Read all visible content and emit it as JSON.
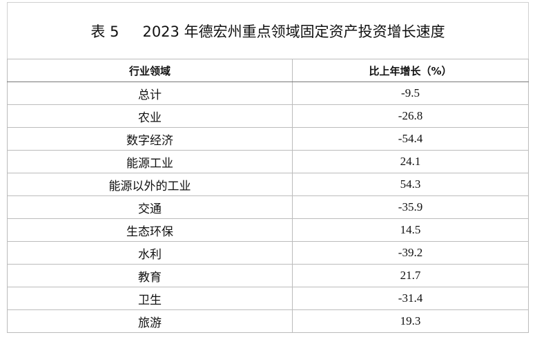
{
  "header": {
    "table_number": "表 5",
    "title": "2023 年德宏州重点领域固定资产投资增长速度"
  },
  "table": {
    "columns": [
      "行业领域",
      "比上年增长（%）"
    ],
    "rows": [
      [
        "总计",
        -9.5
      ],
      [
        "农业",
        -26.8
      ],
      [
        "数字经济",
        -54.4
      ],
      [
        "能源工业",
        24.1
      ],
      [
        "能源以外的工业",
        54.3
      ],
      [
        "交通",
        -35.9
      ],
      [
        "生态环保",
        14.5
      ],
      [
        "水利",
        -39.2
      ],
      [
        "教育",
        21.7
      ],
      [
        "卫生",
        -31.4
      ],
      [
        "旅游",
        19.3
      ]
    ]
  }
}
